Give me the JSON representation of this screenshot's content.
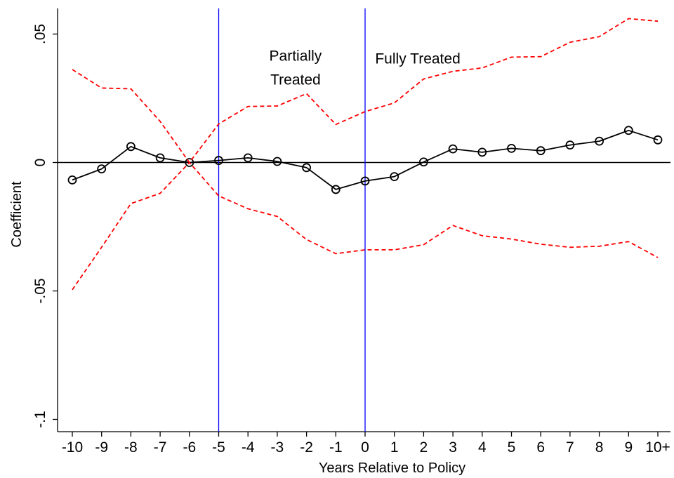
{
  "chart_data": {
    "type": "line",
    "xlabel": "Years Relative to Policy",
    "ylabel": "Coefficient",
    "categories": [
      "-10",
      "-9",
      "-8",
      "-7",
      "-6",
      "-5",
      "-4",
      "-3",
      "-2",
      "-1",
      "0",
      "1",
      "2",
      "3",
      "4",
      "5",
      "6",
      "7",
      "8",
      "9",
      "10+"
    ],
    "ylim": [
      -0.1,
      0.06
    ],
    "yticks": [
      {
        "value": -0.1,
        "label": "-.1"
      },
      {
        "value": -0.05,
        "label": "-.05"
      },
      {
        "value": 0,
        "label": "0"
      },
      {
        "value": 0.05,
        "label": ".05"
      }
    ],
    "series": [
      {
        "role": "coefficient",
        "style": "solid",
        "marker": "hollow-circle",
        "color": "#000000",
        "values": [
          -0.0068,
          -0.0025,
          0.0062,
          0.0018,
          0.0,
          0.0008,
          0.0018,
          0.0004,
          -0.002,
          -0.0105,
          -0.0072,
          -0.0055,
          0.0002,
          0.0053,
          0.004,
          0.0055,
          0.0046,
          0.0068,
          0.0083,
          0.0125,
          0.0088
        ]
      },
      {
        "role": "upper-ci",
        "style": "dashed",
        "color": "#ff0000",
        "values": [
          0.0362,
          0.029,
          0.0287,
          0.016,
          0.0,
          0.015,
          0.0218,
          0.022,
          0.0268,
          0.0148,
          0.0198,
          0.0232,
          0.0325,
          0.0355,
          0.0368,
          0.041,
          0.0412,
          0.0468,
          0.049,
          0.056,
          0.055
        ]
      },
      {
        "role": "lower-ci",
        "style": "dashed",
        "color": "#ff0000",
        "values": [
          -0.0495,
          -0.033,
          -0.016,
          -0.012,
          0.0,
          -0.013,
          -0.018,
          -0.021,
          -0.03,
          -0.0355,
          -0.034,
          -0.034,
          -0.032,
          -0.0245,
          -0.0285,
          -0.0298,
          -0.0318,
          -0.033,
          -0.0326,
          -0.0308,
          -0.037
        ]
      }
    ],
    "reference_lines": [
      {
        "axis": "y",
        "value": 0,
        "color": "#000000"
      },
      {
        "axis": "x",
        "category": "-5",
        "color": "#0000ff"
      },
      {
        "axis": "x",
        "category": "0",
        "color": "#0000ff"
      }
    ],
    "annotations": [
      {
        "lines": [
          "Partially",
          "Treated"
        ],
        "anchor_category": "-3",
        "y": 0.0475
      },
      {
        "lines": [
          "Fully Treated"
        ],
        "anchor_category": "1.8",
        "y": 0.0465
      }
    ],
    "grid": false,
    "legend": "none"
  }
}
